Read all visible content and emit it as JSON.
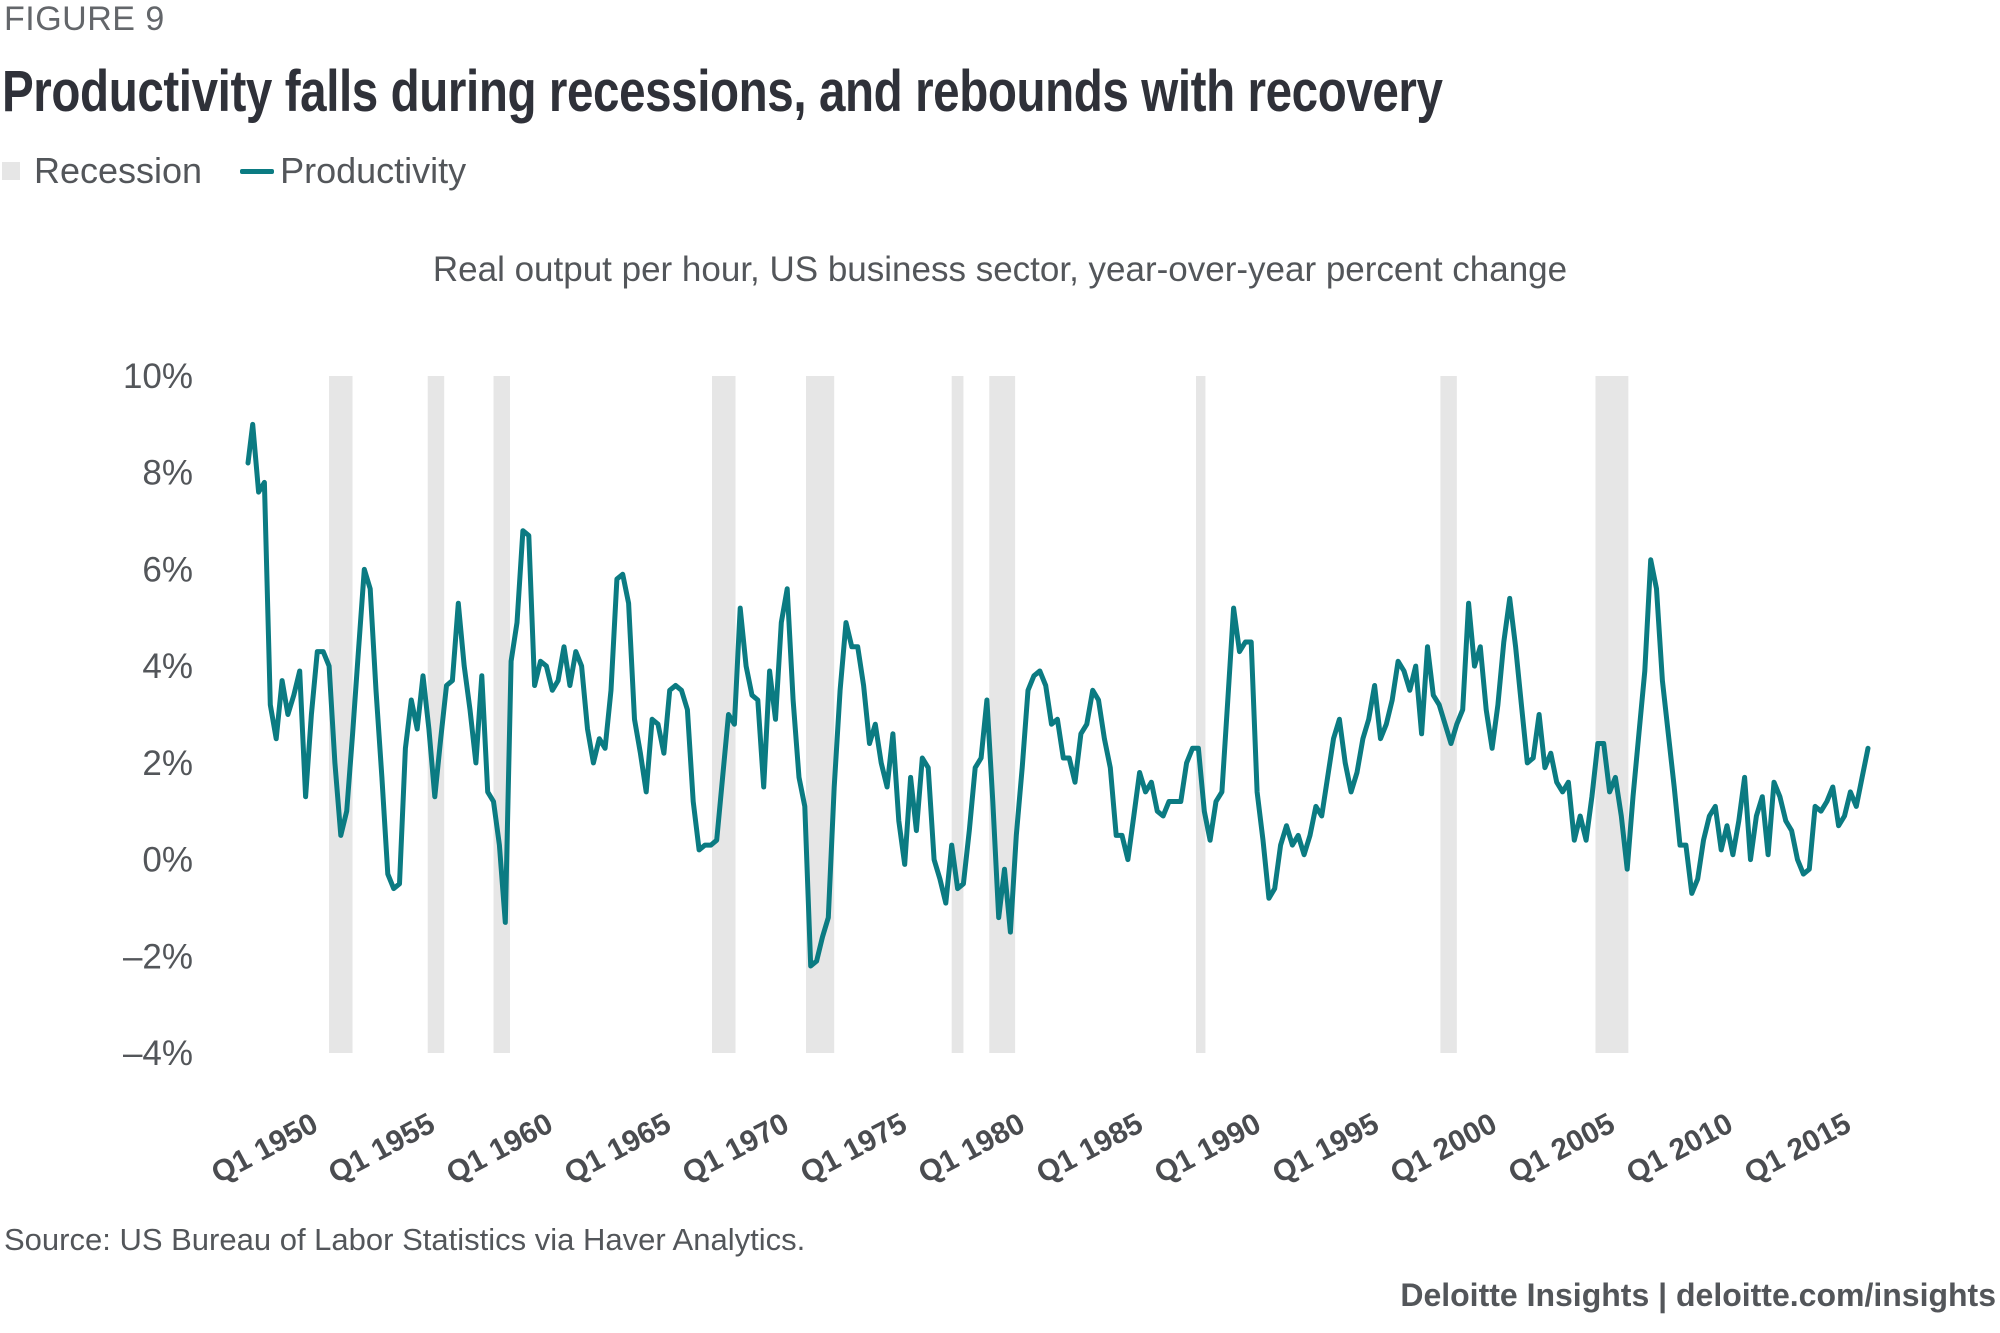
{
  "figure_label": "FIGURE 9",
  "title": "Productivity falls during recessions, and rebounds with recovery",
  "legend": [
    {
      "label": "Recession",
      "type": "rect",
      "color": "#e6e6e6"
    },
    {
      "label": "Productivity",
      "type": "line",
      "color": "#0b7b82"
    }
  ],
  "subtitle": "Real output per hour, US business sector, year-over-year percent change",
  "source": "Source: US Bureau of Labor Statistics via Haver Analytics.",
  "credit": "Deloitte Insights | deloitte.com/insights",
  "chart_data": {
    "type": "line",
    "title": "Productivity falls during recessions, and rebounds with recovery",
    "subtitle": "Real output per hour, US business sector, year-over-year percent change",
    "xlabel": "",
    "ylabel": "",
    "ylim": [
      -4,
      10
    ],
    "yticks": [
      10,
      8,
      6,
      4,
      2,
      0,
      -2,
      -4
    ],
    "ytick_labels": [
      "10%",
      "8%",
      "6%",
      "4%",
      "2%",
      "0%",
      "–2%",
      "–4%"
    ],
    "xlim": [
      1946.5,
      2017.0
    ],
    "xticks": [
      1950,
      1955,
      1960,
      1965,
      1970,
      1975,
      1980,
      1985,
      1990,
      1995,
      2000,
      2005,
      2010,
      2015
    ],
    "xtick_labels": [
      "Q1 1950",
      "Q1 1955",
      "Q1 1960",
      "Q1 1965",
      "Q1 1970",
      "Q1 1975",
      "Q1 1980",
      "Q1 1985",
      "Q1 1990",
      "Q1 1995",
      "Q1 2000",
      "Q1 2005",
      "Q1 2010",
      "Q1 2015"
    ],
    "grid": false,
    "legend_position": "top-left",
    "recession_shading": [
      {
        "start": 1950.3,
        "end": 1951.3
      },
      {
        "start": 1954.5,
        "end": 1955.2
      },
      {
        "start": 1957.3,
        "end": 1958.0
      },
      {
        "start": 1966.6,
        "end": 1967.6
      },
      {
        "start": 1970.6,
        "end": 1971.8
      },
      {
        "start": 1976.8,
        "end": 1977.3
      },
      {
        "start": 1978.4,
        "end": 1979.5
      },
      {
        "start": 1987.2,
        "end": 1987.6
      },
      {
        "start": 1997.6,
        "end": 1998.3
      },
      {
        "start": 2004.2,
        "end": 2005.6
      }
    ],
    "series": [
      {
        "name": "Productivity",
        "color": "#0b7b82",
        "points": [
          [
            1946.85,
            8.2
          ],
          [
            1947.05,
            9.0
          ],
          [
            1947.3,
            7.6
          ],
          [
            1947.55,
            7.8
          ],
          [
            1947.8,
            3.2
          ],
          [
            1948.05,
            2.5
          ],
          [
            1948.3,
            3.7
          ],
          [
            1948.55,
            3.0
          ],
          [
            1948.8,
            3.4
          ],
          [
            1949.05,
            3.9
          ],
          [
            1949.3,
            1.3
          ],
          [
            1949.55,
            3.0
          ],
          [
            1949.8,
            4.3
          ],
          [
            1950.05,
            4.3
          ],
          [
            1950.3,
            4.0
          ],
          [
            1950.55,
            2.0
          ],
          [
            1950.8,
            0.5
          ],
          [
            1951.05,
            1.0
          ],
          [
            1951.3,
            2.6
          ],
          [
            1951.55,
            4.3
          ],
          [
            1951.8,
            6.0
          ],
          [
            1952.05,
            5.6
          ],
          [
            1952.3,
            3.5
          ],
          [
            1952.55,
            1.7
          ],
          [
            1952.8,
            -0.3
          ],
          [
            1953.05,
            -0.6
          ],
          [
            1953.3,
            -0.5
          ],
          [
            1953.55,
            2.3
          ],
          [
            1953.8,
            3.3
          ],
          [
            1954.05,
            2.7
          ],
          [
            1954.3,
            3.8
          ],
          [
            1954.55,
            2.7
          ],
          [
            1954.8,
            1.3
          ],
          [
            1955.05,
            2.5
          ],
          [
            1955.3,
            3.6
          ],
          [
            1955.55,
            3.7
          ],
          [
            1955.8,
            5.3
          ],
          [
            1956.05,
            4.0
          ],
          [
            1956.3,
            3.1
          ],
          [
            1956.55,
            2.0
          ],
          [
            1956.8,
            3.8
          ],
          [
            1957.05,
            1.4
          ],
          [
            1957.3,
            1.2
          ],
          [
            1957.55,
            0.3
          ],
          [
            1957.8,
            -1.3
          ],
          [
            1958.05,
            4.1
          ],
          [
            1958.3,
            4.9
          ],
          [
            1958.55,
            6.8
          ],
          [
            1958.8,
            6.7
          ],
          [
            1959.05,
            3.6
          ],
          [
            1959.3,
            4.1
          ],
          [
            1959.55,
            4.0
          ],
          [
            1959.8,
            3.5
          ],
          [
            1960.05,
            3.7
          ],
          [
            1960.3,
            4.4
          ],
          [
            1960.55,
            3.6
          ],
          [
            1960.8,
            4.3
          ],
          [
            1961.05,
            4.0
          ],
          [
            1961.3,
            2.7
          ],
          [
            1961.55,
            2.0
          ],
          [
            1961.8,
            2.5
          ],
          [
            1962.05,
            2.3
          ],
          [
            1962.3,
            3.5
          ],
          [
            1962.55,
            5.8
          ],
          [
            1962.8,
            5.9
          ],
          [
            1963.05,
            5.3
          ],
          [
            1963.3,
            2.9
          ],
          [
            1963.55,
            2.2
          ],
          [
            1963.8,
            1.4
          ],
          [
            1964.05,
            2.9
          ],
          [
            1964.3,
            2.8
          ],
          [
            1964.55,
            2.2
          ],
          [
            1964.8,
            3.5
          ],
          [
            1965.05,
            3.6
          ],
          [
            1965.3,
            3.5
          ],
          [
            1965.55,
            3.1
          ],
          [
            1965.8,
            1.2
          ],
          [
            1966.05,
            0.2
          ],
          [
            1966.3,
            0.3
          ],
          [
            1966.55,
            0.3
          ],
          [
            1966.8,
            0.4
          ],
          [
            1967.05,
            1.7
          ],
          [
            1967.3,
            3.0
          ],
          [
            1967.55,
            2.8
          ],
          [
            1967.8,
            5.2
          ],
          [
            1968.05,
            4.0
          ],
          [
            1968.3,
            3.4
          ],
          [
            1968.55,
            3.3
          ],
          [
            1968.8,
            1.5
          ],
          [
            1969.05,
            3.9
          ],
          [
            1969.3,
            2.9
          ],
          [
            1969.55,
            4.9
          ],
          [
            1969.8,
            5.6
          ],
          [
            1970.05,
            3.3
          ],
          [
            1970.3,
            1.7
          ],
          [
            1970.55,
            1.1
          ],
          [
            1970.8,
            -2.2
          ],
          [
            1971.05,
            -2.1
          ],
          [
            1971.3,
            -1.6
          ],
          [
            1971.55,
            -1.2
          ],
          [
            1971.8,
            1.5
          ],
          [
            1972.05,
            3.5
          ],
          [
            1972.3,
            4.9
          ],
          [
            1972.55,
            4.4
          ],
          [
            1972.8,
            4.4
          ],
          [
            1973.05,
            3.6
          ],
          [
            1973.3,
            2.4
          ],
          [
            1973.55,
            2.8
          ],
          [
            1973.8,
            2.0
          ],
          [
            1974.05,
            1.5
          ],
          [
            1974.3,
            2.6
          ],
          [
            1974.55,
            0.8
          ],
          [
            1974.8,
            -0.1
          ],
          [
            1975.05,
            1.7
          ],
          [
            1975.3,
            0.6
          ],
          [
            1975.55,
            2.1
          ],
          [
            1975.8,
            1.9
          ],
          [
            1976.05,
            0.0
          ],
          [
            1976.3,
            -0.4
          ],
          [
            1976.55,
            -0.9
          ],
          [
            1976.8,
            0.3
          ],
          [
            1977.05,
            -0.6
          ],
          [
            1977.3,
            -0.5
          ],
          [
            1977.55,
            0.6
          ],
          [
            1977.8,
            1.9
          ],
          [
            1978.05,
            2.1
          ],
          [
            1978.3,
            3.3
          ],
          [
            1978.55,
            1.2
          ],
          [
            1978.8,
            -1.2
          ],
          [
            1979.05,
            -0.2
          ],
          [
            1979.3,
            -1.5
          ],
          [
            1979.55,
            0.5
          ],
          [
            1979.8,
            1.9
          ],
          [
            1980.05,
            3.5
          ],
          [
            1980.3,
            3.8
          ],
          [
            1980.55,
            3.9
          ],
          [
            1980.8,
            3.6
          ],
          [
            1981.05,
            2.8
          ],
          [
            1981.3,
            2.9
          ],
          [
            1981.55,
            2.1
          ],
          [
            1981.8,
            2.1
          ],
          [
            1982.05,
            1.6
          ],
          [
            1982.3,
            2.6
          ],
          [
            1982.55,
            2.8
          ],
          [
            1982.8,
            3.5
          ],
          [
            1983.05,
            3.3
          ],
          [
            1983.3,
            2.5
          ],
          [
            1983.55,
            1.9
          ],
          [
            1983.8,
            0.5
          ],
          [
            1984.05,
            0.5
          ],
          [
            1984.3,
            0.0
          ],
          [
            1984.55,
            0.9
          ],
          [
            1984.8,
            1.8
          ],
          [
            1985.05,
            1.4
          ],
          [
            1985.3,
            1.6
          ],
          [
            1985.55,
            1.0
          ],
          [
            1985.8,
            0.9
          ],
          [
            1986.05,
            1.2
          ],
          [
            1986.3,
            1.2
          ],
          [
            1986.55,
            1.2
          ],
          [
            1986.8,
            2.0
          ],
          [
            1987.05,
            2.3
          ],
          [
            1987.3,
            2.3
          ],
          [
            1987.55,
            1.0
          ],
          [
            1987.8,
            0.4
          ],
          [
            1988.05,
            1.2
          ],
          [
            1988.3,
            1.4
          ],
          [
            1988.55,
            3.3
          ],
          [
            1988.8,
            5.2
          ],
          [
            1989.05,
            4.3
          ],
          [
            1989.3,
            4.5
          ],
          [
            1989.55,
            4.5
          ],
          [
            1989.8,
            1.4
          ],
          [
            1990.05,
            0.4
          ],
          [
            1990.3,
            -0.8
          ],
          [
            1990.55,
            -0.6
          ],
          [
            1990.8,
            0.3
          ],
          [
            1991.05,
            0.7
          ],
          [
            1991.3,
            0.3
          ],
          [
            1991.55,
            0.5
          ],
          [
            1991.8,
            0.1
          ],
          [
            1992.05,
            0.5
          ],
          [
            1992.3,
            1.1
          ],
          [
            1992.55,
            0.9
          ],
          [
            1992.8,
            1.7
          ],
          [
            1993.05,
            2.5
          ],
          [
            1993.3,
            2.9
          ],
          [
            1993.55,
            2.0
          ],
          [
            1993.8,
            1.4
          ],
          [
            1994.05,
            1.8
          ],
          [
            1994.3,
            2.5
          ],
          [
            1994.55,
            2.9
          ],
          [
            1994.8,
            3.6
          ],
          [
            1995.05,
            2.5
          ],
          [
            1995.3,
            2.8
          ],
          [
            1995.55,
            3.3
          ],
          [
            1995.8,
            4.1
          ],
          [
            1996.05,
            3.9
          ],
          [
            1996.3,
            3.5
          ],
          [
            1996.55,
            4.0
          ],
          [
            1996.8,
            2.6
          ],
          [
            1997.05,
            4.4
          ],
          [
            1997.3,
            3.4
          ],
          [
            1997.55,
            3.2
          ],
          [
            1997.8,
            2.8
          ],
          [
            1998.05,
            2.4
          ],
          [
            1998.3,
            2.8
          ],
          [
            1998.55,
            3.1
          ],
          [
            1998.8,
            5.3
          ],
          [
            1999.05,
            4.0
          ],
          [
            1999.3,
            4.4
          ],
          [
            1999.55,
            3.1
          ],
          [
            1999.8,
            2.3
          ],
          [
            2000.05,
            3.2
          ],
          [
            2000.3,
            4.5
          ],
          [
            2000.55,
            5.4
          ],
          [
            2000.8,
            4.4
          ],
          [
            2001.05,
            3.2
          ],
          [
            2001.3,
            2.0
          ],
          [
            2001.55,
            2.1
          ],
          [
            2001.8,
            3.0
          ],
          [
            2002.05,
            1.9
          ],
          [
            2002.3,
            2.2
          ],
          [
            2002.55,
            1.6
          ],
          [
            2002.8,
            1.4
          ],
          [
            2003.05,
            1.6
          ],
          [
            2003.3,
            0.4
          ],
          [
            2003.55,
            0.9
          ],
          [
            2003.8,
            0.4
          ],
          [
            2004.05,
            1.3
          ],
          [
            2004.3,
            2.4
          ],
          [
            2004.55,
            2.4
          ],
          [
            2004.8,
            1.4
          ],
          [
            2005.05,
            1.7
          ],
          [
            2005.3,
            0.9
          ],
          [
            2005.55,
            -0.2
          ],
          [
            2005.8,
            1.3
          ],
          [
            2006.05,
            2.6
          ],
          [
            2006.3,
            3.9
          ],
          [
            2006.55,
            6.2
          ],
          [
            2006.8,
            5.6
          ],
          [
            2007.05,
            3.7
          ],
          [
            2007.3,
            2.6
          ],
          [
            2007.55,
            1.5
          ],
          [
            2007.8,
            0.3
          ],
          [
            2008.05,
            0.3
          ],
          [
            2008.3,
            -0.7
          ],
          [
            2008.55,
            -0.4
          ],
          [
            2008.8,
            0.4
          ],
          [
            2009.05,
            0.9
          ],
          [
            2009.3,
            1.1
          ],
          [
            2009.55,
            0.2
          ],
          [
            2009.8,
            0.7
          ],
          [
            2010.05,
            0.1
          ],
          [
            2010.3,
            0.8
          ],
          [
            2010.55,
            1.7
          ],
          [
            2010.8,
            0.0
          ],
          [
            2011.05,
            0.9
          ],
          [
            2011.3,
            1.3
          ],
          [
            2011.55,
            0.1
          ],
          [
            2011.8,
            1.6
          ],
          [
            2012.05,
            1.3
          ],
          [
            2012.3,
            0.8
          ],
          [
            2012.55,
            0.6
          ],
          [
            2012.8,
            0.0
          ],
          [
            2013.05,
            -0.3
          ],
          [
            2013.3,
            -0.2
          ],
          [
            2013.55,
            1.1
          ],
          [
            2013.8,
            1.0
          ],
          [
            2014.05,
            1.2
          ],
          [
            2014.3,
            1.5
          ],
          [
            2014.55,
            0.7
          ],
          [
            2014.8,
            0.9
          ],
          [
            2015.05,
            1.4
          ],
          [
            2015.3,
            1.1
          ],
          [
            2015.55,
            1.7
          ],
          [
            2015.8,
            2.3
          ]
        ]
      }
    ]
  }
}
